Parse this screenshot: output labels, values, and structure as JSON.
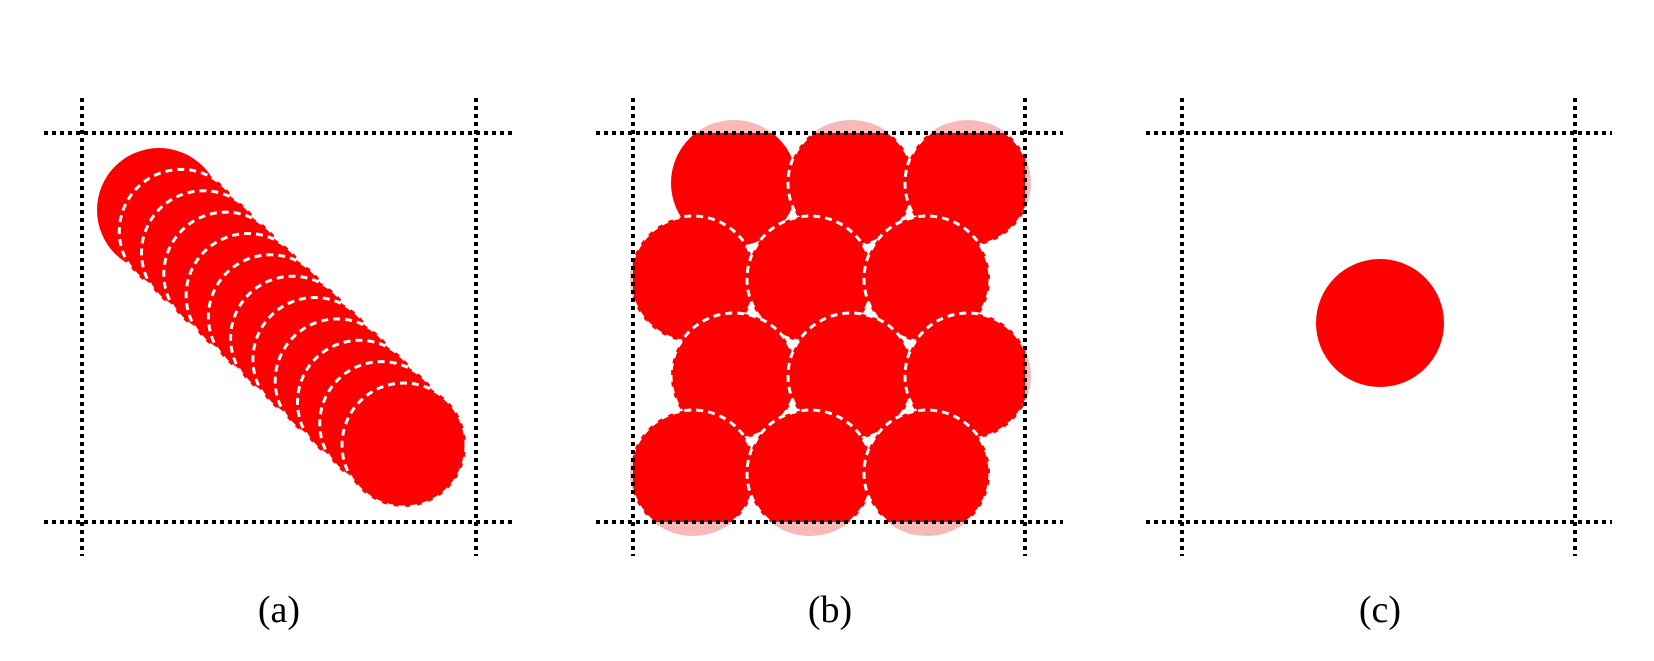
{
  "figure": {
    "panels": [
      {
        "id": "a",
        "caption": "(a)",
        "description_kind": "circles-along-diagonal"
      },
      {
        "id": "b",
        "caption": "(b)",
        "description_kind": "circles-packed-grid"
      },
      {
        "id": "c",
        "caption": "(c)",
        "description_kind": "single-circle"
      }
    ]
  },
  "colors": {
    "circle_fill": "#ff0000",
    "circle_ghost_fill": "#f7b9b9",
    "dashed_outline": "#ffffff",
    "frame_line": "#000000",
    "background": "#ffffff"
  }
}
